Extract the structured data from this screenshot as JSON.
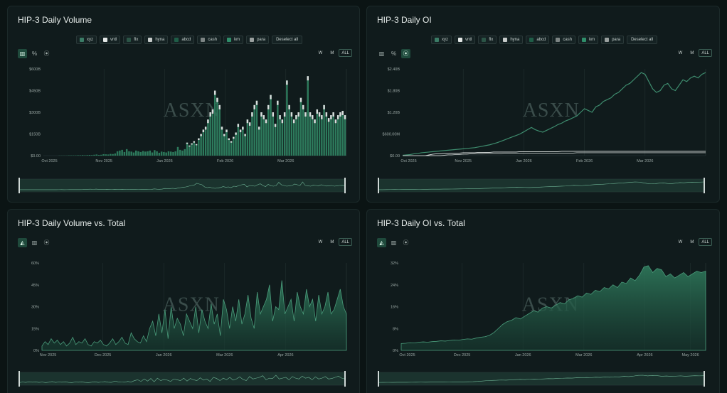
{
  "watermark": "ASXN",
  "colors": {
    "bg": "#0b1414",
    "panel": "#101b1c",
    "accent": "#2d7a5c",
    "accent_light": "#4fb589",
    "grid": "#223030",
    "text": "#d7e0dd"
  },
  "legend": [
    {
      "label": "xyz",
      "color": "#3b7c66"
    },
    {
      "label": "vntl",
      "color": "#e4e8e7"
    },
    {
      "label": "flx",
      "color": "#2b5446"
    },
    {
      "label": "hyna",
      "color": "#c8cccb"
    },
    {
      "label": "abcd",
      "color": "#1f5d47"
    },
    {
      "label": "cash",
      "color": "#7d8584"
    },
    {
      "label": "km",
      "color": "#2f8e6a"
    },
    {
      "label": "para",
      "color": "#9aa09f"
    }
  ],
  "deselect_label": "Deselect all",
  "range_buttons": [
    "W",
    "M",
    "ALL"
  ],
  "tools": {
    "bar": "bar-chart-icon",
    "percent": "%",
    "line": "line-chart-icon",
    "area": "area-chart-icon"
  },
  "chart_data": [
    {
      "type": "bar",
      "title": "HIP-3 Daily Volume",
      "ytick_labels": [
        "$600B",
        "$450B",
        "$300B",
        "$150B",
        "$0.00"
      ],
      "ylim": [
        0,
        600
      ],
      "xtick_labels": [
        "Oct 2025",
        "Nov 2025",
        "Jan 2026",
        "Feb 2026",
        "Mar 2026"
      ],
      "values": [
        1,
        1,
        1,
        1,
        2,
        2,
        2,
        2,
        3,
        3,
        4,
        3,
        4,
        5,
        4,
        6,
        8,
        5,
        6,
        10,
        9,
        8,
        12,
        11,
        15,
        30,
        35,
        40,
        25,
        45,
        30,
        28,
        22,
        35,
        30,
        25,
        32,
        28,
        30,
        35,
        22,
        38,
        30,
        20,
        28,
        25,
        22,
        30,
        28,
        25,
        30,
        60,
        40,
        35,
        45,
        90,
        70,
        85,
        100,
        80,
        120,
        150,
        180,
        200,
        250,
        300,
        320,
        450,
        400,
        350,
        200,
        150,
        180,
        120,
        100,
        130,
        160,
        220,
        180,
        200,
        150,
        250,
        230,
        300,
        350,
        380,
        200,
        300,
        280,
        250,
        350,
        420,
        300,
        220,
        380,
        280,
        250,
        300,
        520,
        350,
        300,
        250,
        280,
        300,
        400,
        350,
        300,
        550,
        300,
        280,
        250,
        320,
        300,
        280,
        350,
        300,
        260,
        280,
        300,
        250,
        280,
        300,
        310,
        280
      ]
    },
    {
      "type": "line",
      "title": "HIP-3 Daily OI",
      "ytick_labels": [
        "$2.40B",
        "$1.80B",
        "$1.20B",
        "$600.00M",
        "$0.00"
      ],
      "ylim": [
        0,
        2.4
      ],
      "xtick_labels": [
        "Oct 2025",
        "Nov 2025",
        "Jan 2026",
        "Feb 2026",
        "Mar 2026"
      ],
      "series": [
        {
          "name": "xyz",
          "values": [
            0.01,
            0.02,
            0.03,
            0.05,
            0.06,
            0.08,
            0.09,
            0.1,
            0.11,
            0.12,
            0.13,
            0.14,
            0.15,
            0.16,
            0.17,
            0.18,
            0.19,
            0.2,
            0.21,
            0.22,
            0.24,
            0.26,
            0.28,
            0.3,
            0.33,
            0.36,
            0.4,
            0.44,
            0.48,
            0.52,
            0.56,
            0.6,
            0.66,
            0.72,
            0.78,
            0.72,
            0.68,
            0.65,
            0.7,
            0.75,
            0.8,
            0.86,
            0.9,
            0.96,
            1.0,
            1.05,
            1.1,
            1.2,
            1.3,
            1.25,
            1.2,
            1.35,
            1.4,
            1.5,
            1.55,
            1.6,
            1.7,
            1.75,
            1.85,
            1.95,
            2.0,
            2.1,
            2.2,
            2.3,
            2.25,
            2.05,
            1.85,
            1.75,
            1.8,
            1.95,
            2.0,
            1.85,
            1.8,
            1.95,
            2.1,
            2.05,
            2.15,
            2.2,
            2.15,
            2.25,
            2.3
          ]
        },
        {
          "name": "vntl",
          "values": [
            0,
            0,
            0,
            0,
            0,
            0,
            0,
            0.02,
            0.04,
            0.05,
            0.05,
            0.06,
            0.06,
            0.07,
            0.07,
            0.07,
            0.08,
            0.08,
            0.08,
            0.08,
            0.09,
            0.09,
            0.09,
            0.09,
            0.1,
            0.1,
            0.1,
            0.1,
            0.1,
            0.1,
            0.1,
            0.11,
            0.11,
            0.11,
            0.11,
            0.11,
            0.11,
            0.11,
            0.11,
            0.11,
            0.11,
            0.11,
            0.12,
            0.12,
            0.12,
            0.12,
            0.12,
            0.12,
            0.12,
            0.12,
            0.12,
            0.12,
            0.12,
            0.12,
            0.12,
            0.12,
            0.12,
            0.12,
            0.12,
            0.12,
            0.12,
            0.12,
            0.12,
            0.12,
            0.12,
            0.12,
            0.12,
            0.12,
            0.12,
            0.12,
            0.12,
            0.12,
            0.12,
            0.12,
            0.12,
            0.12,
            0.12,
            0.12,
            0.12,
            0.12,
            0.12
          ]
        },
        {
          "name": "hyna",
          "values": [
            0,
            0,
            0,
            0,
            0,
            0,
            0,
            0,
            0,
            0,
            0,
            0.01,
            0.02,
            0.02,
            0.03,
            0.03,
            0.04,
            0.04,
            0.05,
            0.05,
            0.05,
            0.05,
            0.06,
            0.06,
            0.06,
            0.06,
            0.06,
            0.07,
            0.07,
            0.07,
            0.07,
            0.07,
            0.07,
            0.07,
            0.07,
            0.07,
            0.07,
            0.07,
            0.07,
            0.07,
            0.07,
            0.07,
            0.07,
            0.07,
            0.07,
            0.07,
            0.08,
            0.08,
            0.08,
            0.08,
            0.08,
            0.08,
            0.08,
            0.08,
            0.08,
            0.08,
            0.08,
            0.08,
            0.08,
            0.08,
            0.08,
            0.08,
            0.08,
            0.08,
            0.08,
            0.08,
            0.08,
            0.08,
            0.08,
            0.08,
            0.08,
            0.08,
            0.08,
            0.08,
            0.08,
            0.08,
            0.08,
            0.08,
            0.08,
            0.08,
            0.08
          ]
        }
      ]
    },
    {
      "type": "area",
      "title": "HIP-3 Daily Volume vs. Total",
      "ytick_labels": [
        "60%",
        "45%",
        "30%",
        "15%",
        "0%"
      ],
      "ylim": [
        0,
        60
      ],
      "xtick_labels": [
        "Nov 2025",
        "Dec 2025",
        "Jan 2026",
        "Mar 2026",
        "Apr 2026"
      ],
      "values": [
        3,
        6,
        4,
        8,
        5,
        7,
        4,
        6,
        3,
        5,
        9,
        4,
        6,
        5,
        8,
        4,
        3,
        6,
        5,
        7,
        4,
        3,
        5,
        8,
        4,
        6,
        9,
        5,
        4,
        12,
        8,
        6,
        5,
        10,
        6,
        15,
        20,
        10,
        25,
        12,
        28,
        8,
        30,
        15,
        22,
        18,
        10,
        25,
        20,
        15,
        30,
        12,
        28,
        20,
        15,
        32,
        18,
        25,
        10,
        35,
        28,
        15,
        30,
        20,
        35,
        18,
        25,
        38,
        22,
        15,
        40,
        25,
        30,
        35,
        45,
        20,
        30,
        28,
        48,
        25,
        30,
        35,
        20,
        40,
        30,
        25,
        42,
        30,
        35,
        20,
        38,
        25,
        30,
        40,
        25,
        28,
        35,
        42,
        30,
        25
      ]
    },
    {
      "type": "area",
      "title": "HIP-3 Daily OI vs. Total",
      "ytick_labels": [
        "32%",
        "24%",
        "16%",
        "8%",
        "0%"
      ],
      "ylim": [
        0,
        32
      ],
      "xtick_labels": [
        "Oct 2025",
        "Dec 2025",
        "Jan 2026",
        "Mar 2026",
        "Apr 2026",
        "May 2026"
      ],
      "values": [
        2.5,
        2.6,
        2.8,
        2.7,
        3.0,
        3.1,
        3.0,
        3.2,
        3.3,
        3.5,
        3.4,
        3.6,
        3.8,
        3.7,
        4.0,
        4.2,
        4.1,
        4.5,
        4.8,
        5.0,
        5.5,
        6.5,
        8.0,
        9.5,
        10.5,
        11.0,
        12.0,
        11.5,
        12.5,
        13.5,
        14.5,
        14.0,
        15.5,
        16.0,
        15.5,
        16.5,
        17.5,
        17.0,
        18.5,
        19.0,
        20.0,
        19.5,
        21.0,
        20.5,
        22.0,
        21.5,
        23.0,
        22.5,
        24.0,
        23.0,
        25.0,
        24.5,
        26.5,
        25.5,
        27.5,
        30.5,
        31.0,
        28.5,
        30.0,
        29.5,
        27.0,
        28.0,
        26.5,
        27.5,
        28.5,
        27.0,
        28.0,
        29.0,
        28.5,
        29.0
      ]
    }
  ],
  "panels": {
    "vol": {
      "title": "HIP-3 Daily Volume"
    },
    "oi": {
      "title": "HIP-3 Daily OI"
    },
    "volpct": {
      "title": "HIP-3 Daily Volume vs. Total"
    },
    "oipct": {
      "title": "HIP-3 Daily OI vs. Total"
    }
  }
}
